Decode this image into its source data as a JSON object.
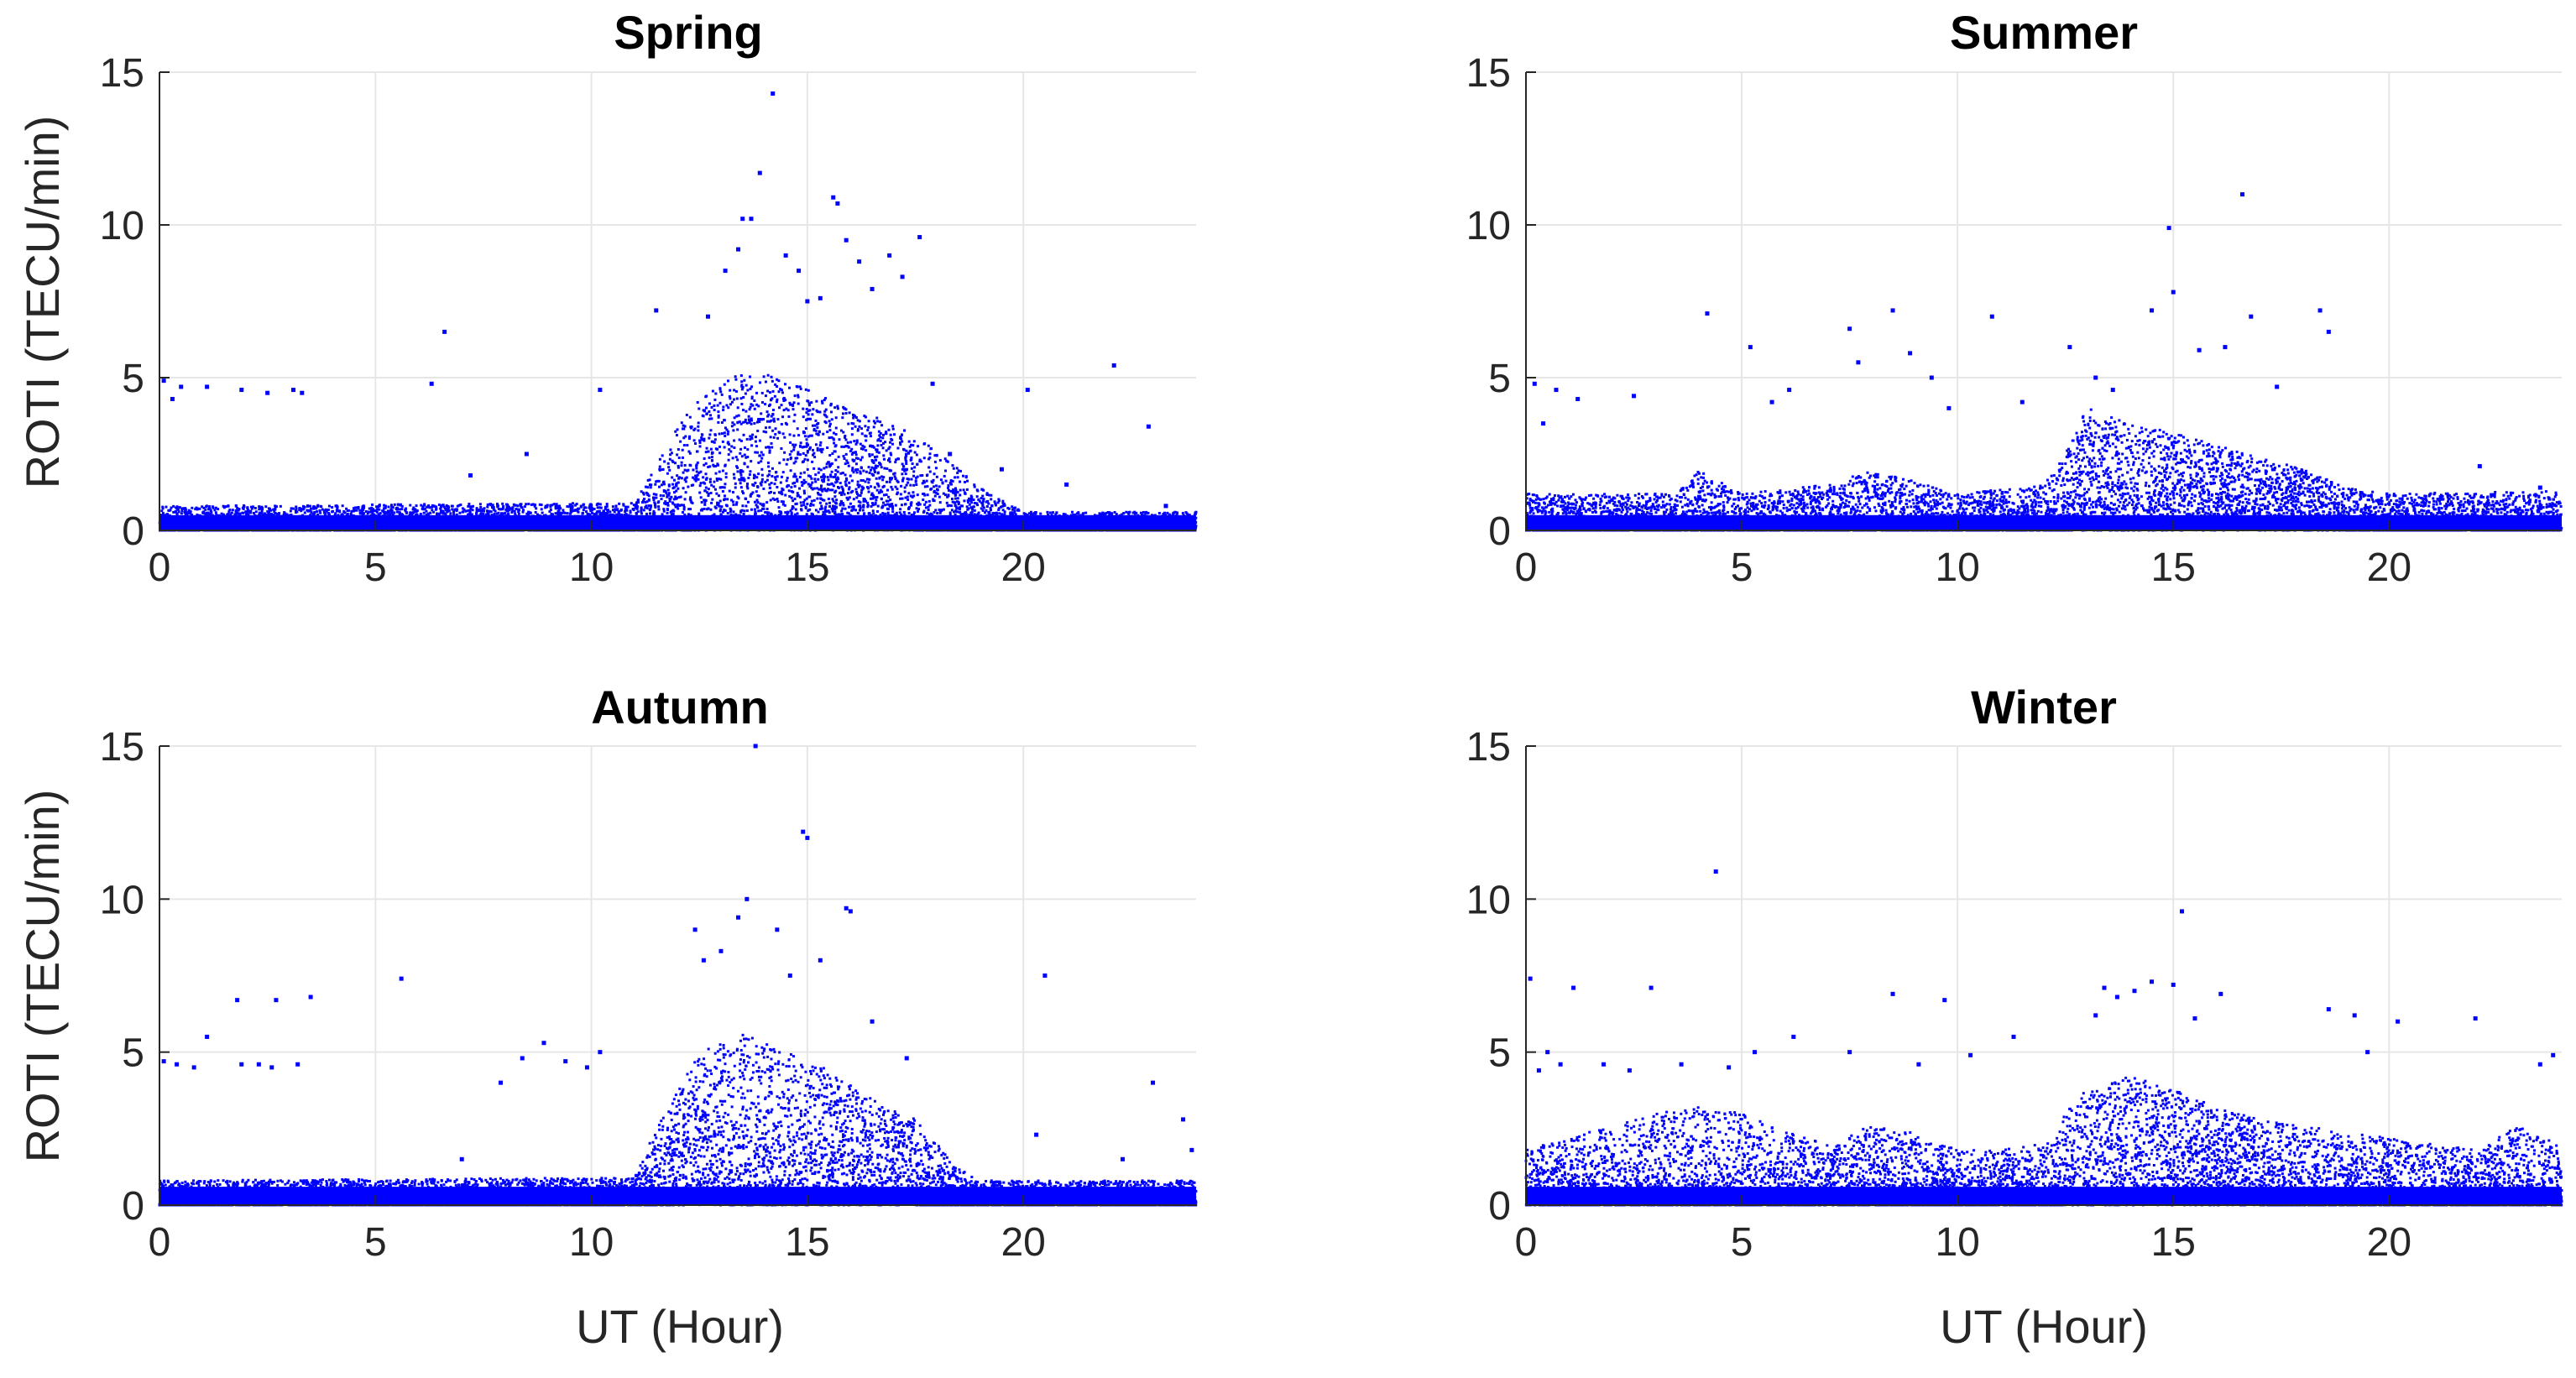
{
  "chart_data": [
    {
      "type": "scatter",
      "title": "Spring",
      "xlabel": "",
      "ylabel": "ROTI (TECU/min)",
      "xlim": [
        0,
        24
      ],
      "ylim": [
        0,
        15
      ],
      "xticks": [
        0,
        5,
        10,
        15,
        20
      ],
      "yticks": [
        0,
        5,
        10,
        15
      ],
      "grid": true,
      "color": "#0000ff",
      "baseline_band": [
        0,
        0.5
      ],
      "envelope": [
        [
          0,
          0.8
        ],
        [
          11,
          0.9
        ],
        [
          12,
          3.5
        ],
        [
          13,
          5.0
        ],
        [
          14,
          5.2
        ],
        [
          15,
          4.6
        ],
        [
          16,
          4.0
        ],
        [
          17,
          3.5
        ],
        [
          18,
          2.6
        ],
        [
          19,
          1.4
        ],
        [
          20,
          0.6
        ],
        [
          24,
          0.6
        ]
      ],
      "peak_window": [
        12.5,
        17.5
      ],
      "outliers": [
        [
          0.1,
          4.9
        ],
        [
          0.3,
          4.3
        ],
        [
          0.5,
          4.7
        ],
        [
          1.1,
          4.7
        ],
        [
          1.9,
          4.6
        ],
        [
          2.5,
          4.5
        ],
        [
          3.1,
          4.6
        ],
        [
          3.3,
          4.5
        ],
        [
          6.3,
          4.8
        ],
        [
          6.6,
          6.5
        ],
        [
          7.2,
          1.8
        ],
        [
          8.5,
          2.5
        ],
        [
          10.2,
          4.6
        ],
        [
          11.5,
          7.2
        ],
        [
          12.7,
          7.0
        ],
        [
          13.1,
          8.5
        ],
        [
          13.4,
          9.2
        ],
        [
          13.5,
          10.2
        ],
        [
          13.7,
          10.2
        ],
        [
          13.9,
          11.7
        ],
        [
          14.2,
          14.3
        ],
        [
          14.5,
          9.0
        ],
        [
          14.8,
          8.5
        ],
        [
          15.0,
          7.5
        ],
        [
          15.3,
          7.6
        ],
        [
          15.6,
          10.9
        ],
        [
          15.7,
          10.7
        ],
        [
          15.9,
          9.5
        ],
        [
          16.2,
          8.8
        ],
        [
          16.5,
          7.9
        ],
        [
          16.9,
          9.0
        ],
        [
          17.2,
          8.3
        ],
        [
          17.6,
          9.6
        ],
        [
          17.9,
          4.8
        ],
        [
          18.3,
          2.5
        ],
        [
          19.5,
          2.0
        ],
        [
          20.1,
          4.6
        ],
        [
          21.0,
          1.5
        ],
        [
          22.1,
          5.4
        ],
        [
          22.9,
          3.4
        ],
        [
          23.3,
          0.8
        ]
      ]
    },
    {
      "type": "scatter",
      "title": "Summer",
      "xlabel": "",
      "ylabel": "",
      "xlim": [
        0,
        24
      ],
      "ylim": [
        0,
        15
      ],
      "xticks": [
        0,
        5,
        10,
        15,
        20
      ],
      "yticks": [
        0,
        5,
        10,
        15
      ],
      "grid": true,
      "color": "#0000ff",
      "baseline_band": [
        0,
        0.5
      ],
      "envelope": [
        [
          0,
          1.2
        ],
        [
          3.5,
          1.2
        ],
        [
          4,
          2.0
        ],
        [
          5,
          1.2
        ],
        [
          7,
          1.5
        ],
        [
          8,
          2.0
        ],
        [
          10,
          1.2
        ],
        [
          12,
          1.5
        ],
        [
          12.5,
          2.5
        ],
        [
          13,
          4.0
        ],
        [
          14,
          3.5
        ],
        [
          15,
          3.2
        ],
        [
          16,
          2.8
        ],
        [
          17,
          2.4
        ],
        [
          18,
          2.0
        ],
        [
          19,
          1.4
        ],
        [
          20,
          1.2
        ],
        [
          24,
          1.3
        ]
      ],
      "peak_window": [
        12.5,
        19.0
      ],
      "outliers": [
        [
          0.2,
          4.8
        ],
        [
          0.4,
          3.5
        ],
        [
          0.7,
          4.6
        ],
        [
          1.2,
          4.3
        ],
        [
          2.5,
          4.4
        ],
        [
          4.2,
          7.1
        ],
        [
          5.2,
          6.0
        ],
        [
          5.7,
          4.2
        ],
        [
          6.1,
          4.6
        ],
        [
          7.5,
          6.6
        ],
        [
          7.7,
          5.5
        ],
        [
          8.5,
          7.2
        ],
        [
          8.9,
          5.8
        ],
        [
          9.4,
          5.0
        ],
        [
          9.8,
          4.0
        ],
        [
          10.8,
          7.0
        ],
        [
          11.5,
          4.2
        ],
        [
          12.6,
          6.0
        ],
        [
          13.2,
          5.0
        ],
        [
          13.6,
          4.6
        ],
        [
          14.5,
          7.2
        ],
        [
          14.9,
          9.9
        ],
        [
          15.0,
          7.8
        ],
        [
          15.6,
          5.9
        ],
        [
          16.2,
          6.0
        ],
        [
          16.6,
          11.0
        ],
        [
          16.8,
          7.0
        ],
        [
          17.4,
          4.7
        ],
        [
          18.4,
          7.2
        ],
        [
          18.6,
          6.5
        ],
        [
          22.1,
          2.1
        ],
        [
          23.5,
          1.4
        ]
      ]
    },
    {
      "type": "scatter",
      "title": "Autumn",
      "xlabel": "UT (Hour)",
      "ylabel": "ROTI (TECU/min)",
      "xlim": [
        0,
        24
      ],
      "ylim": [
        0,
        15
      ],
      "xticks": [
        0,
        5,
        10,
        15,
        20
      ],
      "yticks": [
        0,
        5,
        10,
        15
      ],
      "grid": true,
      "color": "#0000ff",
      "baseline_band": [
        0,
        0.6
      ],
      "envelope": [
        [
          0,
          0.8
        ],
        [
          11,
          0.9
        ],
        [
          11.5,
          2.5
        ],
        [
          12.5,
          5.0
        ],
        [
          13.5,
          5.6
        ],
        [
          14.5,
          5.0
        ],
        [
          15.5,
          4.4
        ],
        [
          16.5,
          3.5
        ],
        [
          17.5,
          2.8
        ],
        [
          18.5,
          1.2
        ],
        [
          19,
          0.8
        ],
        [
          24,
          0.8
        ]
      ],
      "peak_window": [
        11.8,
        17.5
      ],
      "outliers": [
        [
          0.1,
          4.7
        ],
        [
          0.4,
          4.6
        ],
        [
          0.8,
          4.5
        ],
        [
          1.1,
          5.5
        ],
        [
          1.8,
          6.7
        ],
        [
          1.9,
          4.6
        ],
        [
          2.3,
          4.6
        ],
        [
          2.6,
          4.5
        ],
        [
          2.7,
          6.7
        ],
        [
          3.2,
          4.6
        ],
        [
          3.5,
          6.8
        ],
        [
          5.6,
          7.4
        ],
        [
          7.0,
          1.5
        ],
        [
          7.9,
          4.0
        ],
        [
          8.4,
          4.8
        ],
        [
          8.9,
          5.3
        ],
        [
          9.4,
          4.7
        ],
        [
          9.9,
          4.5
        ],
        [
          10.2,
          5.0
        ],
        [
          12.4,
          9.0
        ],
        [
          12.6,
          8.0
        ],
        [
          13.0,
          8.3
        ],
        [
          13.4,
          9.4
        ],
        [
          13.6,
          10.0
        ],
        [
          13.8,
          15.0
        ],
        [
          14.3,
          9.0
        ],
        [
          14.6,
          7.5
        ],
        [
          14.9,
          12.2
        ],
        [
          15.0,
          12.0
        ],
        [
          15.3,
          8.0
        ],
        [
          15.9,
          9.7
        ],
        [
          16.0,
          9.6
        ],
        [
          16.5,
          6.0
        ],
        [
          17.3,
          4.8
        ],
        [
          20.3,
          2.3
        ],
        [
          20.5,
          7.5
        ],
        [
          22.3,
          1.5
        ],
        [
          23.0,
          4.0
        ],
        [
          23.7,
          2.8
        ],
        [
          23.9,
          1.8
        ]
      ]
    },
    {
      "type": "scatter",
      "title": "Winter",
      "xlabel": "UT (Hour)",
      "ylabel": "",
      "xlim": [
        0,
        24
      ],
      "ylim": [
        0,
        15
      ],
      "xticks": [
        0,
        5,
        10,
        15,
        20
      ],
      "yticks": [
        0,
        5,
        10,
        15
      ],
      "grid": true,
      "color": "#0000ff",
      "baseline_band": [
        0,
        0.6
      ],
      "envelope": [
        [
          0,
          1.8
        ],
        [
          1,
          2.2
        ],
        [
          2,
          2.6
        ],
        [
          3,
          3.0
        ],
        [
          4,
          3.2
        ],
        [
          5,
          3.0
        ],
        [
          6,
          2.4
        ],
        [
          7,
          2.0
        ],
        [
          8,
          2.6
        ],
        [
          9,
          2.4
        ],
        [
          10,
          1.8
        ],
        [
          11,
          1.8
        ],
        [
          12,
          2.0
        ],
        [
          12.5,
          3.0
        ],
        [
          13,
          3.8
        ],
        [
          14,
          4.2
        ],
        [
          15,
          3.8
        ],
        [
          16,
          3.2
        ],
        [
          17,
          2.8
        ],
        [
          18,
          2.6
        ],
        [
          19,
          2.4
        ],
        [
          20,
          2.2
        ],
        [
          21,
          2.0
        ],
        [
          22,
          1.8
        ],
        [
          23,
          2.6
        ],
        [
          24,
          2.0
        ]
      ],
      "peak_window": [
        12.5,
        17.0
      ],
      "outliers": [
        [
          0.1,
          7.4
        ],
        [
          0.3,
          4.4
        ],
        [
          0.5,
          5.0
        ],
        [
          0.8,
          4.6
        ],
        [
          1.1,
          7.1
        ],
        [
          1.8,
          4.6
        ],
        [
          2.4,
          4.4
        ],
        [
          2.9,
          7.1
        ],
        [
          3.6,
          4.6
        ],
        [
          4.4,
          10.9
        ],
        [
          4.7,
          4.5
        ],
        [
          5.3,
          5.0
        ],
        [
          6.2,
          5.5
        ],
        [
          7.5,
          5.0
        ],
        [
          8.5,
          6.9
        ],
        [
          9.1,
          4.6
        ],
        [
          9.7,
          6.7
        ],
        [
          10.3,
          4.9
        ],
        [
          11.3,
          5.5
        ],
        [
          13.2,
          6.2
        ],
        [
          13.4,
          7.1
        ],
        [
          13.7,
          6.8
        ],
        [
          14.1,
          7.0
        ],
        [
          14.5,
          7.3
        ],
        [
          15.0,
          7.2
        ],
        [
          15.2,
          9.6
        ],
        [
          15.5,
          6.1
        ],
        [
          16.1,
          6.9
        ],
        [
          18.6,
          6.4
        ],
        [
          19.2,
          6.2
        ],
        [
          19.5,
          5.0
        ],
        [
          20.2,
          6.0
        ],
        [
          22.0,
          6.1
        ],
        [
          23.5,
          4.6
        ],
        [
          23.8,
          4.9
        ]
      ]
    }
  ]
}
